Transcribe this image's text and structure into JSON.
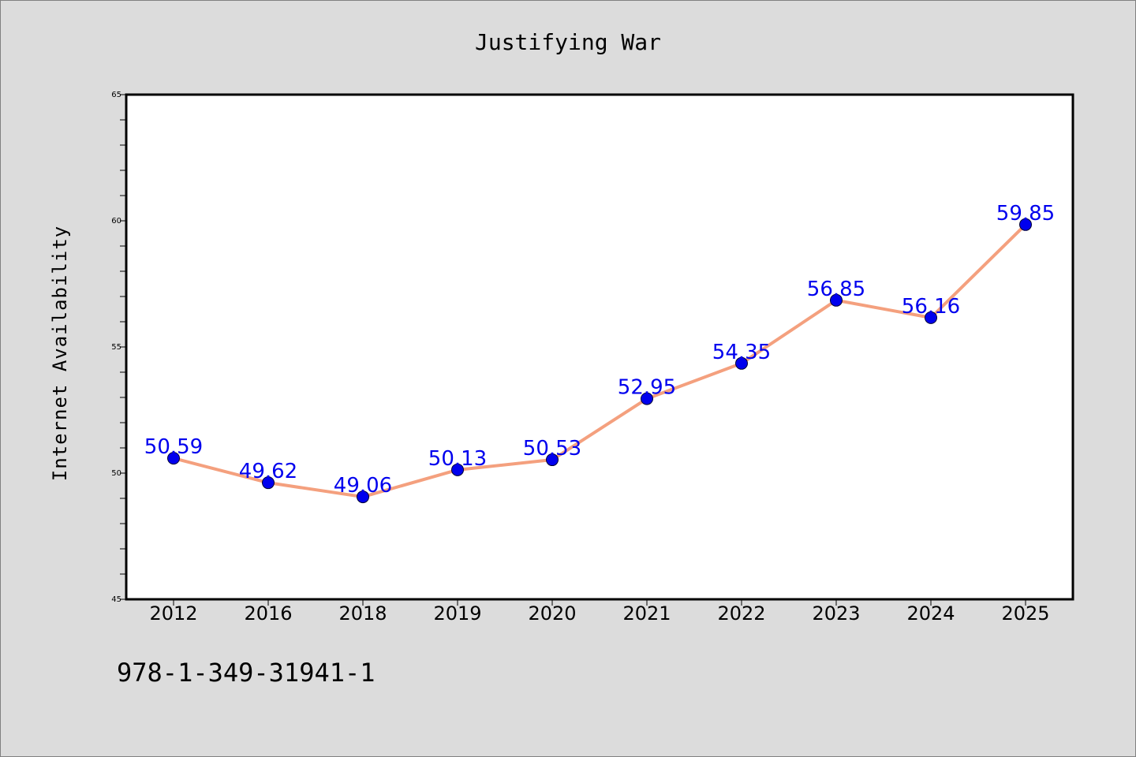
{
  "chart_data": {
    "type": "line",
    "title": "Justifying War",
    "xlabel": "",
    "ylabel": "Internet Availability",
    "categories": [
      "2012",
      "2016",
      "2018",
      "2019",
      "2020",
      "2021",
      "2022",
      "2023",
      "2024",
      "2025"
    ],
    "series": [
      {
        "values": [
          50.59,
          49.62,
          49.06,
          50.13,
          50.53,
          52.95,
          54.35,
          56.85,
          56.16,
          59.85
        ]
      }
    ],
    "data_labels": [
      "50.59",
      "49.62",
      "49.06",
      "50.13",
      "50.53",
      "52.95",
      "54.35",
      "56.85",
      "56.16",
      "59.85"
    ],
    "ylim": [
      45,
      65
    ],
    "yticks": [
      "45",
      "50",
      "55",
      "60",
      "65"
    ],
    "grid": false,
    "line_color": "#f4a07e",
    "marker_color": "#0000ee",
    "label_color": "#0000ee",
    "background_color": "#dcdcdc",
    "plot_background_color": "#ffffff"
  },
  "footer": {
    "isbn": "978-1-349-31941-1"
  }
}
